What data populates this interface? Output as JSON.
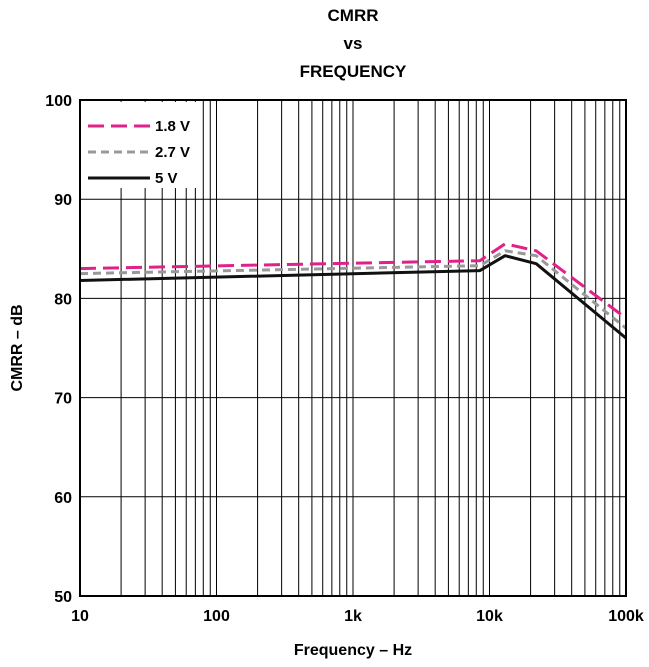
{
  "chart_data": {
    "type": "line",
    "title_lines": [
      "CMRR",
      "vs",
      "FREQUENCY"
    ],
    "xlabel": "Frequency – Hz",
    "ylabel": "CMRR – dB",
    "xscale": "log",
    "xlim": [
      10,
      100000
    ],
    "ylim": [
      50,
      100
    ],
    "x_ticks": [
      {
        "value": 10,
        "label": "10"
      },
      {
        "value": 100,
        "label": "100"
      },
      {
        "value": 1000,
        "label": "1k"
      },
      {
        "value": 10000,
        "label": "10k"
      },
      {
        "value": 100000,
        "label": "100k"
      }
    ],
    "y_ticks": [
      {
        "value": 50,
        "label": "50"
      },
      {
        "value": 60,
        "label": "60"
      },
      {
        "value": 70,
        "label": "70"
      },
      {
        "value": 80,
        "label": "80"
      },
      {
        "value": 90,
        "label": "90"
      },
      {
        "value": 100,
        "label": "100"
      }
    ],
    "grid": true,
    "legend_position": "top-left",
    "series": [
      {
        "name": "1.8 V",
        "color": "#e0218a",
        "dash": "dashed",
        "x": [
          10,
          8500,
          13000,
          22000,
          100000
        ],
        "y": [
          83.0,
          83.8,
          85.5,
          84.8,
          78.0
        ]
      },
      {
        "name": "2.7 V",
        "color": "#999999",
        "dash": "dotted",
        "x": [
          10,
          8500,
          13000,
          22000,
          100000
        ],
        "y": [
          82.5,
          83.3,
          84.8,
          84.3,
          77.0
        ]
      },
      {
        "name": "5 V",
        "color": "#111111",
        "dash": "solid",
        "x": [
          10,
          8500,
          13000,
          22000,
          100000
        ],
        "y": [
          81.8,
          82.8,
          84.3,
          83.5,
          76.0
        ]
      }
    ]
  }
}
